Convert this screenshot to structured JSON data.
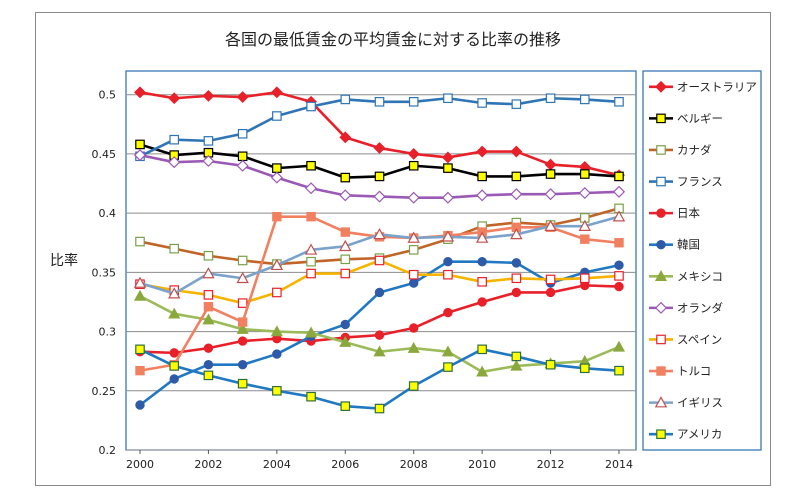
{
  "chart_data": {
    "type": "line",
    "title": "各国の最低賃金の平均賃金に対する比率の推移",
    "xlabel": "",
    "ylabel": "比率",
    "x": [
      2000,
      2001,
      2002,
      2003,
      2004,
      2005,
      2006,
      2007,
      2008,
      2009,
      2010,
      2011,
      2012,
      2013,
      2014
    ],
    "x_ticks": [
      2000,
      2002,
      2004,
      2006,
      2008,
      2010,
      2012,
      2014
    ],
    "xlim": [
      2000,
      2014
    ],
    "ylim": [
      0.2,
      0.52
    ],
    "y_ticks": [
      0.2,
      0.25,
      0.3,
      0.35,
      0.4,
      0.45,
      0.5
    ],
    "grid": "horizontal",
    "legend_position": "right",
    "series": [
      {
        "name": "オーストラリア",
        "color": "#e8202a",
        "marker": "diamond",
        "line_color": "#e8202a",
        "values": [
          0.502,
          0.497,
          0.499,
          0.498,
          0.502,
          0.494,
          0.464,
          0.455,
          0.45,
          0.447,
          0.452,
          0.452,
          0.441,
          0.439,
          0.432
        ]
      },
      {
        "name": "ベルギー",
        "color": "#000000",
        "marker": "square-filled-yellow",
        "line_color": "#000000",
        "values": [
          0.458,
          0.449,
          0.451,
          0.448,
          0.438,
          0.44,
          0.43,
          0.431,
          0.44,
          0.438,
          0.431,
          0.431,
          0.433,
          0.433,
          0.431
        ]
      },
      {
        "name": "カナダ",
        "color": "#c06428",
        "marker": "square-open-green",
        "line_color": "#c06428",
        "values": [
          0.376,
          0.37,
          0.364,
          0.36,
          0.357,
          0.359,
          0.361,
          0.362,
          0.369,
          0.378,
          0.389,
          0.392,
          0.39,
          0.396,
          0.404
        ]
      },
      {
        "name": "フランス",
        "color": "#2f75b5",
        "marker": "square-open",
        "line_color": "#2f75b5",
        "values": [
          0.448,
          0.462,
          0.461,
          0.467,
          0.482,
          0.49,
          0.496,
          0.494,
          0.494,
          0.497,
          0.493,
          0.492,
          0.497,
          0.496,
          0.494
        ]
      },
      {
        "name": "日本",
        "color": "#e8202a",
        "marker": "circle",
        "line_color": "#e8202a",
        "values": [
          0.283,
          0.282,
          0.286,
          0.292,
          0.294,
          0.292,
          0.295,
          0.297,
          0.303,
          0.316,
          0.325,
          0.333,
          0.333,
          0.339,
          0.338
        ]
      },
      {
        "name": "韓国",
        "color": "#2e5aa8",
        "marker": "circle",
        "line_color": "#1f78c1",
        "values": [
          0.238,
          0.26,
          0.272,
          0.272,
          0.281,
          0.296,
          0.306,
          0.333,
          0.341,
          0.359,
          0.359,
          0.358,
          0.341,
          0.35,
          0.356
        ]
      },
      {
        "name": "メキシコ",
        "color": "#8aa83c",
        "marker": "triangle",
        "line_color": "#9bbb59",
        "values": [
          0.33,
          0.315,
          0.31,
          0.302,
          0.3,
          0.299,
          0.291,
          0.283,
          0.286,
          0.283,
          0.266,
          0.271,
          0.273,
          0.275,
          0.287
        ]
      },
      {
        "name": "オランダ",
        "color": "#9b59b6",
        "marker": "diamond-open",
        "line_color": "#9b59b6",
        "values": [
          0.449,
          0.443,
          0.444,
          0.44,
          0.43,
          0.421,
          0.415,
          0.414,
          0.413,
          0.413,
          0.415,
          0.416,
          0.416,
          0.417,
          0.418
        ]
      },
      {
        "name": "スペイン",
        "color": "#f4b400",
        "marker": "square-open-red",
        "line_color": "#f4b400",
        "values": [
          0.34,
          0.335,
          0.331,
          0.324,
          0.333,
          0.349,
          0.349,
          0.36,
          0.348,
          0.348,
          0.342,
          0.345,
          0.344,
          0.345,
          0.347
        ]
      },
      {
        "name": "トルコ",
        "color": "#f08060",
        "marker": "square-filled",
        "line_color": "#f08060",
        "values": [
          0.267,
          0.272,
          0.321,
          0.308,
          0.397,
          0.397,
          0.384,
          0.38,
          0.379,
          0.381,
          0.384,
          0.388,
          0.388,
          0.378,
          0.375
        ]
      },
      {
        "name": "イギリス",
        "color": "#c0504d",
        "marker": "triangle-open",
        "line_color": "#7aa3cc",
        "values": [
          0.341,
          0.332,
          0.349,
          0.345,
          0.356,
          0.369,
          0.372,
          0.382,
          0.379,
          0.38,
          0.379,
          0.382,
          0.389,
          0.389,
          0.397
        ]
      },
      {
        "name": "アメリカ",
        "color": "#1f78c1",
        "marker": "square-filled-yellow",
        "line_color": "#1f78c1",
        "values": [
          0.285,
          0.271,
          0.263,
          0.256,
          0.25,
          0.245,
          0.237,
          0.235,
          0.254,
          0.27,
          0.285,
          0.279,
          0.272,
          0.269,
          0.267
        ]
      }
    ]
  }
}
